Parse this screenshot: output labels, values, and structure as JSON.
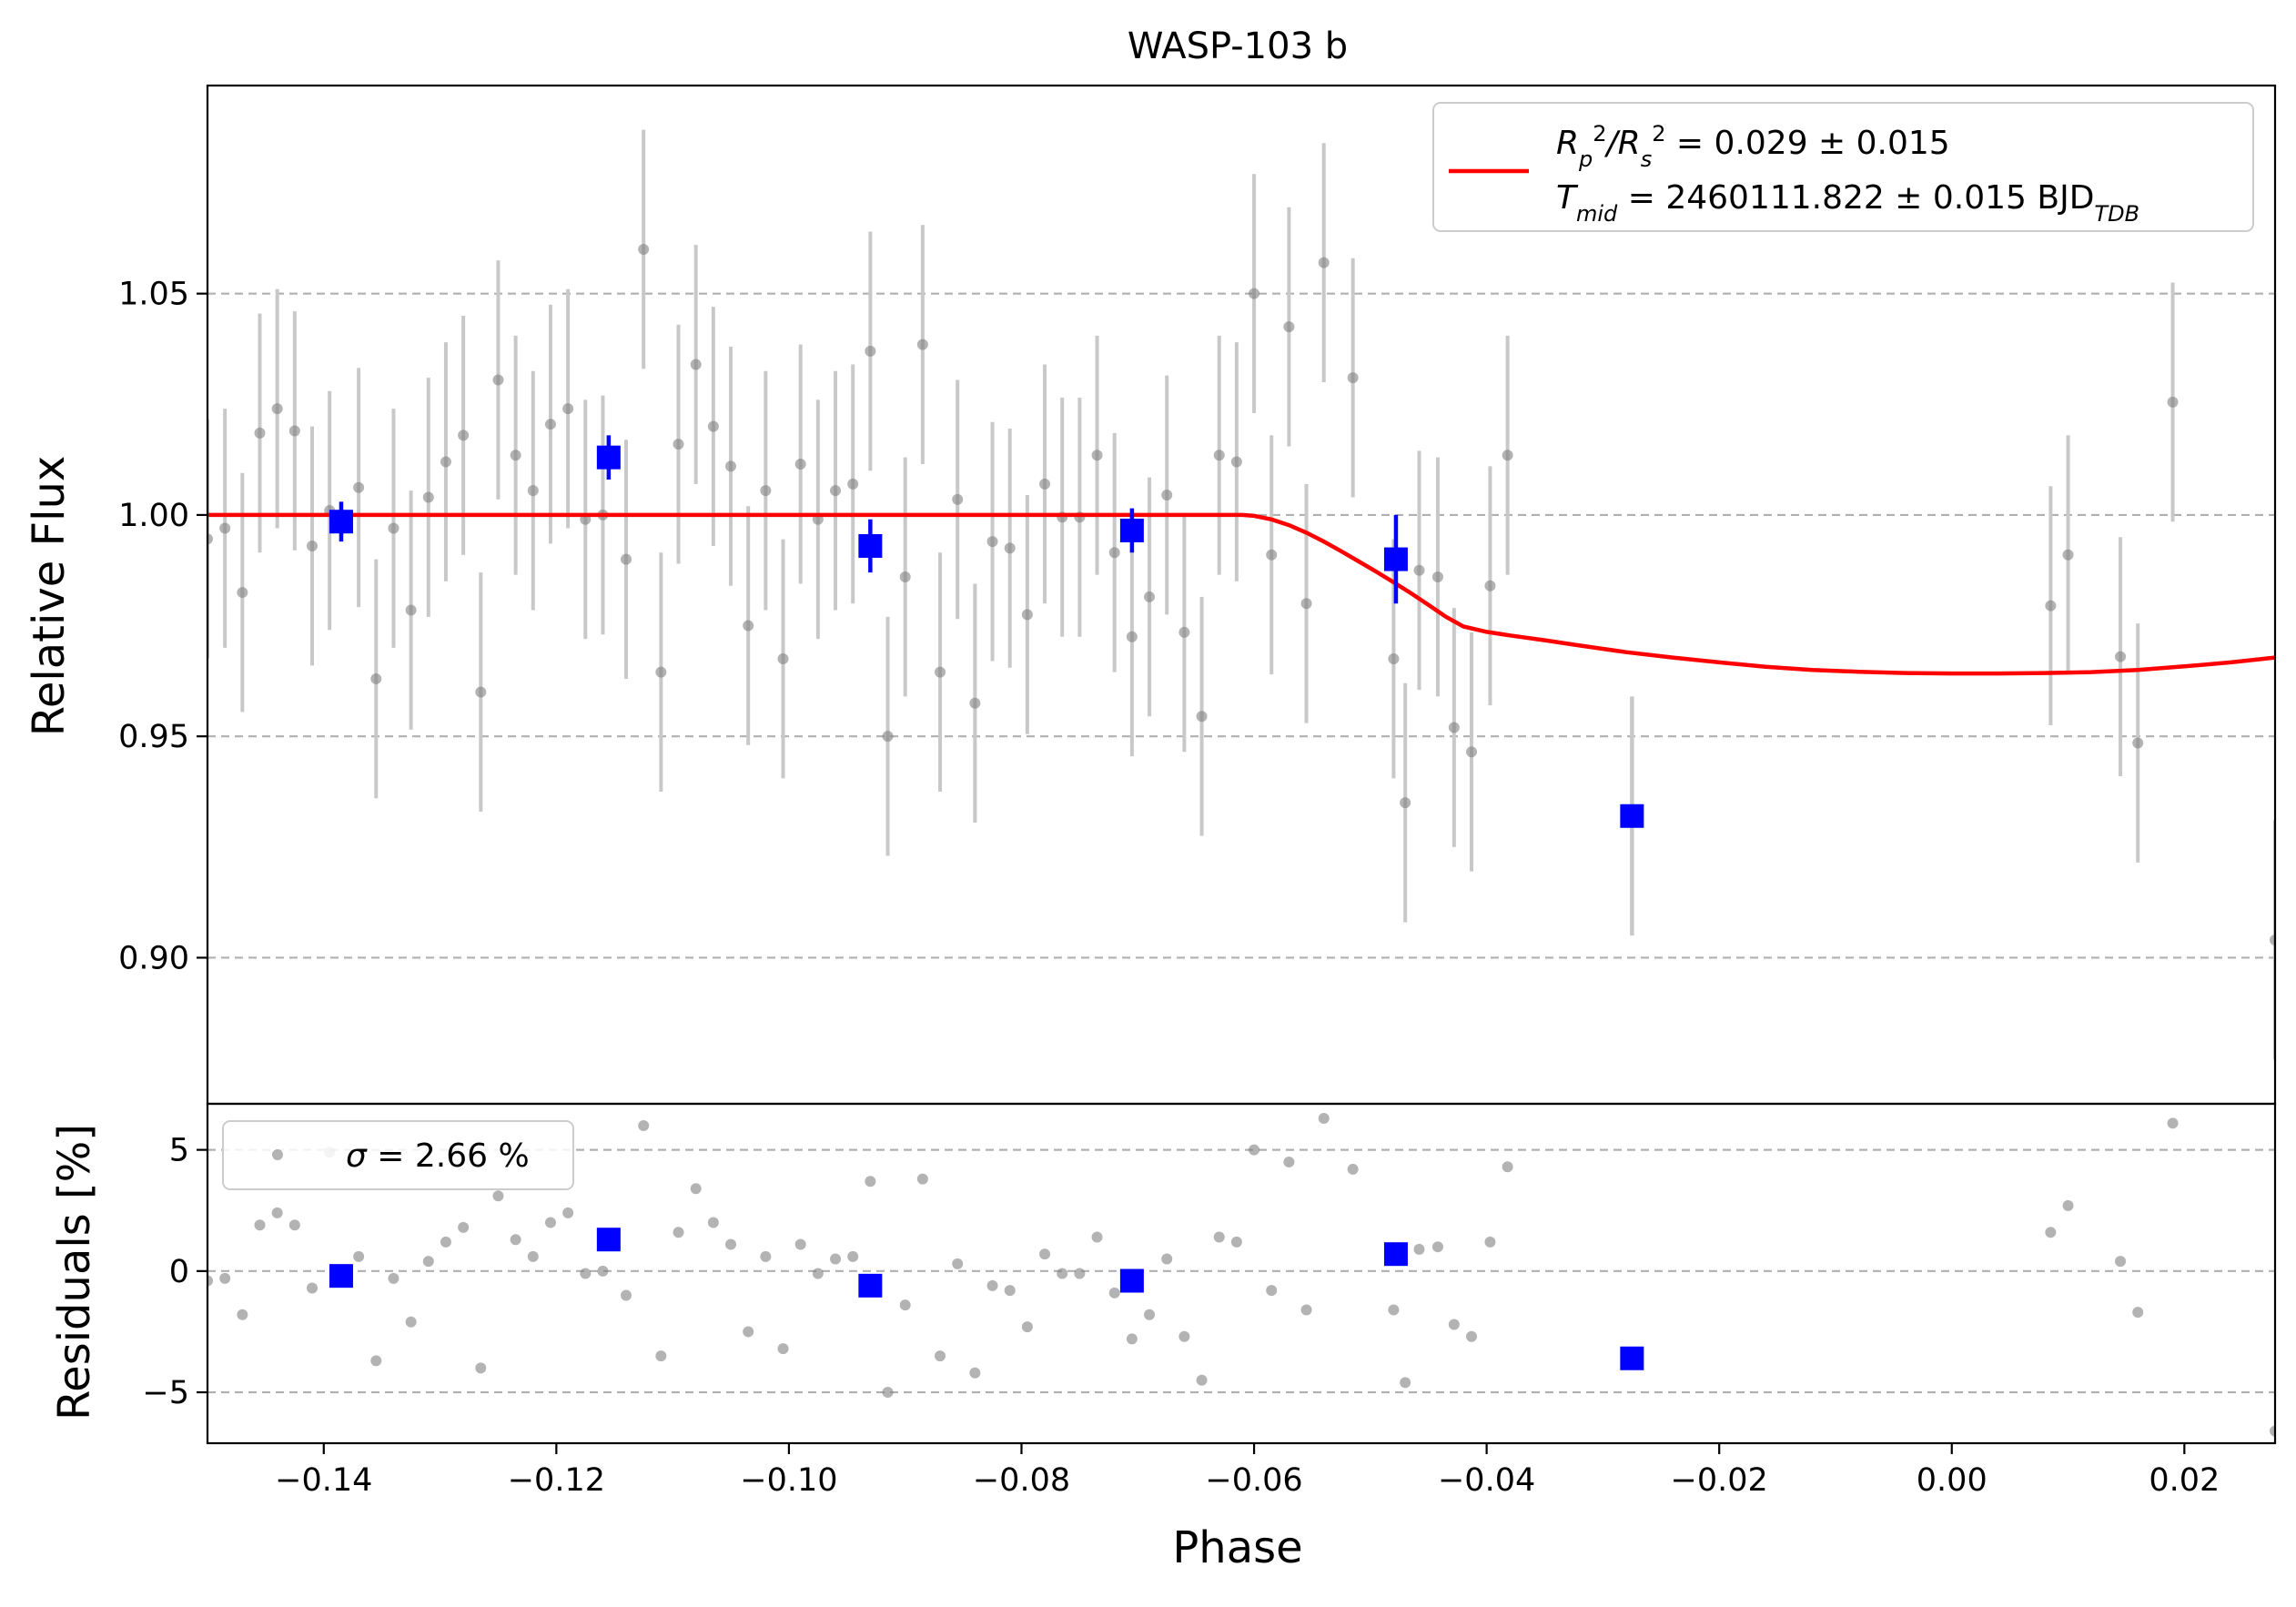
{
  "chart_data": {
    "type": "scatter",
    "title": "WASP-103 b",
    "xlabel": "Phase",
    "ylabel_top": "Relative Flux",
    "ylabel_bottom": "Residuals [%]",
    "xlim": [
      -0.15,
      0.0278
    ],
    "ylim_top": [
      0.867,
      1.097
    ],
    "ylim_bottom": [
      -7.1,
      6.9
    ],
    "grid": "horizontal dashed",
    "legend_placement_top": "upper right",
    "legend_placement_bottom": "upper left",
    "x_ticks": [
      -0.14,
      -0.12,
      -0.1,
      -0.08,
      -0.06,
      -0.04,
      -0.02,
      0.0,
      0.02
    ],
    "x_tick_labels": [
      "−0.14",
      "−0.12",
      "−0.10",
      "−0.08",
      "−0.06",
      "−0.04",
      "−0.02",
      "0.00",
      "0.02"
    ],
    "y_ticks_top": [
      0.9,
      0.95,
      1.0,
      1.05
    ],
    "y_tick_labels_top": [
      "0.90",
      "0.95",
      "1.00",
      "1.05"
    ],
    "y_ticks_bottom": [
      -5,
      0,
      5
    ],
    "y_tick_labels_bottom": [
      "−5",
      "0",
      "5"
    ],
    "legend_top": {
      "line1": {
        "prefix": "R",
        "sub1": "p",
        "sup1": "2",
        "mid": "/R",
        "sub2": "s",
        "sup2": "2",
        "rest": " = 0.029 ± 0.015"
      },
      "line2": {
        "prefix": "T",
        "sub1": "mid",
        "rest": " = 2460111.822 ± 0.015 BJD",
        "sub2": "TDB"
      }
    },
    "legend_bottom": {
      "symbol": "σ",
      "text": " = 2.66 %"
    },
    "colors": {
      "raw": "#808080",
      "raw_err": "#c8c8c8",
      "binned": "#0000ff",
      "model": "#ff0000",
      "grid": "#b0b0b0"
    },
    "series_raw": [
      {
        "x": -0.15,
        "y": 0.9946,
        "e": 0.027,
        "r": -0.4
      },
      {
        "x": -0.1485,
        "y": 0.997,
        "e": 0.027,
        "r": -0.3
      },
      {
        "x": -0.147,
        "y": 0.9825,
        "e": 0.027,
        "r": -1.8
      },
      {
        "x": -0.1455,
        "y": 1.0185,
        "e": 0.027,
        "r": 1.9
      },
      {
        "x": -0.144,
        "y": 1.024,
        "e": 0.027,
        "r": 2.4
      },
      {
        "x": -0.1425,
        "y": 1.019,
        "e": 0.027,
        "r": 1.9
      },
      {
        "x": -0.141,
        "y": 0.993,
        "e": 0.027,
        "r": -0.7
      },
      {
        "x": -0.1395,
        "y": 1.001,
        "e": 0.027,
        "r": 4.9
      },
      {
        "x": -0.137,
        "y": 1.0062,
        "e": 0.027,
        "r": 0.6
      },
      {
        "x": -0.1355,
        "y": 0.963,
        "e": 0.027,
        "r": -3.7
      },
      {
        "x": -0.134,
        "y": 0.997,
        "e": 0.027,
        "r": -0.3
      },
      {
        "x": -0.1325,
        "y": 0.9785,
        "e": 0.027,
        "r": -2.1
      },
      {
        "x": -0.131,
        "y": 1.004,
        "e": 0.027,
        "r": 0.4
      },
      {
        "x": -0.1295,
        "y": 1.012,
        "e": 0.027,
        "r": 1.2
      },
      {
        "x": -0.128,
        "y": 1.018,
        "e": 0.027,
        "r": 1.8
      },
      {
        "x": -0.1265,
        "y": 0.96,
        "e": 0.027,
        "r": -4.0
      },
      {
        "x": -0.125,
        "y": 1.0305,
        "e": 0.027,
        "r": 3.1
      },
      {
        "x": -0.1235,
        "y": 1.0135,
        "e": 0.027,
        "r": 1.3
      },
      {
        "x": -0.122,
        "y": 1.0055,
        "e": 0.027,
        "r": 0.6
      },
      {
        "x": -0.1205,
        "y": 1.0205,
        "e": 0.027,
        "r": 2.0
      },
      {
        "x": -0.119,
        "y": 1.024,
        "e": 0.027,
        "r": 2.4
      },
      {
        "x": -0.1175,
        "y": 0.999,
        "e": 0.027,
        "r": -0.1
      },
      {
        "x": -0.116,
        "y": 1.0,
        "e": 0.027,
        "r": 0.0
      },
      {
        "x": -0.114,
        "y": 0.99,
        "e": 0.027,
        "r": -1.0
      },
      {
        "x": -0.1125,
        "y": 1.06,
        "e": 0.027,
        "r": 6.0
      },
      {
        "x": -0.111,
        "y": 0.9645,
        "e": 0.027,
        "r": -3.5
      },
      {
        "x": -0.1095,
        "y": 1.016,
        "e": 0.027,
        "r": 1.6
      },
      {
        "x": -0.108,
        "y": 1.034,
        "e": 0.027,
        "r": 3.4
      },
      {
        "x": -0.1065,
        "y": 1.02,
        "e": 0.027,
        "r": 2.0
      },
      {
        "x": -0.105,
        "y": 1.011,
        "e": 0.027,
        "r": 1.1
      },
      {
        "x": -0.1035,
        "y": 0.975,
        "e": 0.027,
        "r": -2.5
      },
      {
        "x": -0.102,
        "y": 1.0055,
        "e": 0.027,
        "r": 0.6
      },
      {
        "x": -0.1005,
        "y": 0.9675,
        "e": 0.027,
        "r": -3.2
      },
      {
        "x": -0.099,
        "y": 1.0115,
        "e": 0.027,
        "r": 1.1
      },
      {
        "x": -0.0975,
        "y": 0.999,
        "e": 0.027,
        "r": -0.1
      },
      {
        "x": -0.096,
        "y": 1.0055,
        "e": 0.027,
        "r": 0.5
      },
      {
        "x": -0.0945,
        "y": 1.007,
        "e": 0.027,
        "r": 0.6
      },
      {
        "x": -0.093,
        "y": 1.037,
        "e": 0.027,
        "r": 3.7
      },
      {
        "x": -0.0915,
        "y": 0.95,
        "e": 0.027,
        "r": -5.0
      },
      {
        "x": -0.09,
        "y": 0.986,
        "e": 0.027,
        "r": -1.4
      },
      {
        "x": -0.0885,
        "y": 1.0385,
        "e": 0.027,
        "r": 3.8
      },
      {
        "x": -0.087,
        "y": 0.9645,
        "e": 0.027,
        "r": -3.5
      },
      {
        "x": -0.0855,
        "y": 1.0035,
        "e": 0.027,
        "r": 0.3
      },
      {
        "x": -0.084,
        "y": 0.9575,
        "e": 0.027,
        "r": -4.2
      },
      {
        "x": -0.0825,
        "y": 0.994,
        "e": 0.027,
        "r": -0.6
      },
      {
        "x": -0.081,
        "y": 0.9925,
        "e": 0.027,
        "r": -0.8
      },
      {
        "x": -0.0795,
        "y": 0.9775,
        "e": 0.027,
        "r": -2.3
      },
      {
        "x": -0.078,
        "y": 1.007,
        "e": 0.027,
        "r": 0.7
      },
      {
        "x": -0.0765,
        "y": 0.9995,
        "e": 0.027,
        "r": -0.1
      },
      {
        "x": -0.075,
        "y": 0.9995,
        "e": 0.027,
        "r": -0.1
      },
      {
        "x": -0.0735,
        "y": 1.0135,
        "e": 0.027,
        "r": 1.4
      },
      {
        "x": -0.072,
        "y": 0.9915,
        "e": 0.027,
        "r": -0.9
      },
      {
        "x": -0.0705,
        "y": 0.9725,
        "e": 0.027,
        "r": -2.8
      },
      {
        "x": -0.069,
        "y": 0.9815,
        "e": 0.027,
        "r": -1.8
      },
      {
        "x": -0.0675,
        "y": 1.0045,
        "e": 0.027,
        "r": 0.5
      },
      {
        "x": -0.066,
        "y": 0.9735,
        "e": 0.027,
        "r": -2.7
      },
      {
        "x": -0.0645,
        "y": 0.9545,
        "e": 0.027,
        "r": -4.5
      },
      {
        "x": -0.063,
        "y": 1.0135,
        "e": 0.027,
        "r": 1.4
      },
      {
        "x": -0.0615,
        "y": 1.012,
        "e": 0.027,
        "r": 1.2
      },
      {
        "x": -0.06,
        "y": 1.05,
        "e": 0.027,
        "r": 5.0
      },
      {
        "x": -0.0585,
        "y": 0.991,
        "e": 0.027,
        "r": -0.8
      },
      {
        "x": -0.057,
        "y": 1.0425,
        "e": 0.027,
        "r": 4.5
      },
      {
        "x": -0.0555,
        "y": 0.98,
        "e": 0.027,
        "r": -1.6
      },
      {
        "x": -0.054,
        "y": 1.057,
        "e": 0.027,
        "r": 6.3
      },
      {
        "x": -0.0515,
        "y": 1.031,
        "e": 0.027,
        "r": 4.2
      },
      {
        "x": -0.048,
        "y": 0.9675,
        "e": 0.027,
        "r": -1.6
      },
      {
        "x": -0.047,
        "y": 0.935,
        "e": 0.027,
        "r": -4.6
      },
      {
        "x": -0.0458,
        "y": 0.9875,
        "e": 0.027,
        "r": 0.9
      },
      {
        "x": -0.0442,
        "y": 0.986,
        "e": 0.027,
        "r": 1.0
      },
      {
        "x": -0.0428,
        "y": 0.952,
        "e": 0.027,
        "r": -2.2
      },
      {
        "x": -0.0413,
        "y": 0.9465,
        "e": 0.027,
        "r": -2.7
      },
      {
        "x": -0.0397,
        "y": 0.984,
        "e": 0.027,
        "r": 1.2
      },
      {
        "x": -0.0382,
        "y": 1.0135,
        "e": 0.027,
        "r": 4.3
      },
      {
        "x": 0.0085,
        "y": 0.9795,
        "e": 0.027,
        "r": 1.6
      },
      {
        "x": 0.01,
        "y": 0.991,
        "e": 0.027,
        "r": 2.7
      },
      {
        "x": 0.0145,
        "y": 0.968,
        "e": 0.027,
        "r": 0.4
      },
      {
        "x": 0.016,
        "y": 0.9485,
        "e": 0.027,
        "r": -1.7
      },
      {
        "x": 0.019,
        "y": 1.0255,
        "e": 0.027,
        "r": 6.1
      },
      {
        "x": 0.0278,
        "y": 0.904,
        "e": 0.027,
        "r": -6.6
      }
    ],
    "series_binned": [
      {
        "x": -0.1385,
        "y": 0.9985,
        "e": 0.0045,
        "r": -0.2
      },
      {
        "x": -0.1155,
        "y": 1.013,
        "e": 0.005,
        "r": 1.3
      },
      {
        "x": -0.093,
        "y": 0.993,
        "e": 0.006,
        "r": -0.6
      },
      {
        "x": -0.0705,
        "y": 0.9965,
        "e": 0.005,
        "r": -0.4
      },
      {
        "x": -0.0478,
        "y": 0.99,
        "e": 0.01,
        "r": 0.7
      },
      {
        "x": -0.0275,
        "y": 0.932,
        "e": 0.027,
        "r": -3.6
      }
    ],
    "model": {
      "x": [
        -0.15,
        -0.13,
        -0.11,
        -0.09,
        -0.07,
        -0.061,
        -0.06,
        -0.0585,
        -0.057,
        -0.0555,
        -0.054,
        -0.0525,
        -0.051,
        -0.0495,
        -0.048,
        -0.0465,
        -0.045,
        -0.0435,
        -0.042,
        -0.04,
        -0.038,
        -0.035,
        -0.032,
        -0.028,
        -0.024,
        -0.02,
        -0.016,
        -0.012,
        -0.008,
        -0.004,
        0.0,
        0.004,
        0.008,
        0.012,
        0.016,
        0.02,
        0.024,
        0.0278
      ],
      "y": [
        1.0,
        1.0,
        1.0,
        1.0,
        1.0,
        1.0,
        0.9998,
        0.999,
        0.9977,
        0.996,
        0.994,
        0.9918,
        0.9895,
        0.9872,
        0.9848,
        0.9823,
        0.9797,
        0.977,
        0.9748,
        0.9736,
        0.9728,
        0.9717,
        0.9705,
        0.969,
        0.9678,
        0.9667,
        0.9657,
        0.965,
        0.9646,
        0.9643,
        0.9642,
        0.9642,
        0.9643,
        0.9645,
        0.965,
        0.9658,
        0.9667,
        0.9678
      ]
    }
  }
}
